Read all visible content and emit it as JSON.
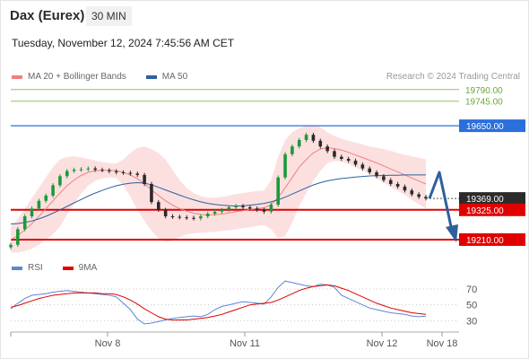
{
  "header": {
    "title": "Dax (Eurex)",
    "timeframe": "30 MIN",
    "datetime": "Tuesday, November 12, 2024 7:45:56 AM CET"
  },
  "legend": {
    "items": [
      {
        "label": "MA 20 + Bollinger Bands",
        "color": "#f08080"
      },
      {
        "label": "MA 50",
        "color": "#2e5f9e"
      }
    ],
    "credit": "Research © 2024 Trading Central"
  },
  "rsi_legend": {
    "items": [
      {
        "label": "RSI",
        "color": "#5b86d6"
      },
      {
        "label": "9MA",
        "color": "#e00000"
      }
    ]
  },
  "chart_data": [
    {
      "type": "line",
      "title": "Dax (Eurex)",
      "x_ticks": [
        "Nov 8",
        "Nov 11",
        "Nov 12",
        "Nov 18"
      ],
      "y_range": [
        19130,
        19810
      ],
      "levels": [
        {
          "value": 19790.0,
          "label": "19790.00",
          "color": "#8dc65c",
          "style": "thin"
        },
        {
          "value": 19745.0,
          "label": "19745.00",
          "color": "#8dc65c",
          "style": "thin"
        },
        {
          "value": 19650.0,
          "label": "19650.00",
          "color": "#2a6fdb",
          "style": "box"
        },
        {
          "value": 19369.0,
          "label": "19369.00",
          "color": "#2b2b2b",
          "style": "box"
        },
        {
          "value": 19325.0,
          "label": "19325.00",
          "color": "#e00000",
          "style": "box"
        },
        {
          "value": 19210.0,
          "label": "19210.00",
          "color": "#e00000",
          "style": "box"
        }
      ],
      "price": [
        19190,
        19250,
        19300,
        19330,
        19360,
        19380,
        19420,
        19455,
        19475,
        19480,
        19482,
        19485,
        19480,
        19478,
        19474,
        19470,
        19468,
        19465,
        19460,
        19425,
        19355,
        19325,
        19300,
        19298,
        19296,
        19294,
        19292,
        19300,
        19310,
        19318,
        19325,
        19335,
        19340,
        19335,
        19330,
        19325,
        19318,
        19345,
        19450,
        19540,
        19570,
        19595,
        19615,
        19592,
        19570,
        19552,
        19530,
        19522,
        19515,
        19500,
        19485,
        19470,
        19455,
        19440,
        19425,
        19415,
        19400,
        19385,
        19375,
        19369
      ],
      "ma20": [
        19210,
        19225,
        19248,
        19272,
        19300,
        19330,
        19360,
        19390,
        19418,
        19440,
        19458,
        19470,
        19476,
        19478,
        19478,
        19476,
        19470,
        19460,
        19445,
        19426,
        19402,
        19380,
        19360,
        19343,
        19330,
        19320,
        19312,
        19307,
        19305,
        19306,
        19309,
        19313,
        19318,
        19322,
        19326,
        19330,
        19333,
        19345,
        19372,
        19410,
        19450,
        19490,
        19520,
        19545,
        19560,
        19565,
        19562,
        19556,
        19547,
        19537,
        19527,
        19517,
        19506,
        19495,
        19483,
        19472,
        19460,
        19448,
        19436,
        19425
      ],
      "bb_upper": [
        19260,
        19290,
        19330,
        19370,
        19410,
        19450,
        19490,
        19520,
        19530,
        19532,
        19528,
        19522,
        19515,
        19510,
        19506,
        19504,
        19520,
        19545,
        19565,
        19570,
        19560,
        19545,
        19520,
        19480,
        19440,
        19410,
        19390,
        19378,
        19372,
        19372,
        19375,
        19380,
        19386,
        19390,
        19394,
        19398,
        19400,
        19440,
        19530,
        19595,
        19625,
        19640,
        19650,
        19652,
        19645,
        19625,
        19610,
        19600,
        19592,
        19585,
        19578,
        19570,
        19565,
        19560,
        19553,
        19545,
        19538,
        19532,
        19526,
        19520
      ],
      "bb_lower": [
        19160,
        19160,
        19166,
        19174,
        19190,
        19210,
        19230,
        19260,
        19306,
        19348,
        19388,
        19418,
        19437,
        19446,
        19450,
        19448,
        19420,
        19375,
        19325,
        19282,
        19244,
        19215,
        19200,
        19206,
        19220,
        19230,
        19234,
        19236,
        19238,
        19240,
        19243,
        19246,
        19250,
        19254,
        19258,
        19262,
        19266,
        19250,
        19214,
        19225,
        19275,
        19340,
        19390,
        19438,
        19475,
        19505,
        19514,
        19512,
        19502,
        19489,
        19476,
        19464,
        19447,
        19430,
        19413,
        19399,
        19382,
        19364,
        19346,
        19330
      ],
      "ma50": [
        19270,
        19272,
        19276,
        19282,
        19290,
        19300,
        19312,
        19325,
        19338,
        19352,
        19365,
        19378,
        19390,
        19400,
        19410,
        19418,
        19424,
        19428,
        19430,
        19428,
        19422,
        19412,
        19402,
        19392,
        19382,
        19372,
        19364,
        19356,
        19350,
        19346,
        19343,
        19341,
        19340,
        19341,
        19343,
        19346,
        19350,
        19356,
        19364,
        19374,
        19386,
        19398,
        19410,
        19421,
        19430,
        19437,
        19442,
        19446,
        19449,
        19452,
        19454,
        19456,
        19457,
        19458,
        19459,
        19459,
        19460,
        19460,
        19460,
        19460
      ],
      "projection": [
        19369,
        19470,
        19210
      ]
    },
    {
      "type": "line",
      "title": "RSI",
      "y_ticks": [
        70,
        50,
        30
      ],
      "y_range": [
        18,
        88
      ],
      "rsi": [
        45,
        52,
        58,
        62,
        63,
        64,
        66,
        67,
        68,
        67,
        66,
        65,
        64,
        63,
        62,
        60,
        52,
        44,
        32,
        26,
        27,
        29,
        31,
        33,
        34,
        35,
        36,
        35,
        38,
        44,
        48,
        50,
        52,
        54,
        53,
        52,
        51,
        60,
        72,
        80,
        78,
        76,
        74,
        73,
        76,
        75,
        72,
        62,
        58,
        54,
        50,
        46,
        44,
        42,
        40,
        39,
        38,
        36,
        35,
        36
      ],
      "ma9": [
        47,
        49,
        52,
        55,
        58,
        60,
        62,
        63,
        64,
        65,
        65,
        65,
        65,
        64,
        64,
        63,
        60,
        56,
        51,
        45,
        40,
        35,
        32,
        31,
        31,
        31,
        32,
        33,
        34,
        36,
        38,
        41,
        44,
        47,
        50,
        51,
        52,
        53,
        56,
        60,
        64,
        68,
        71,
        73,
        74,
        75,
        74,
        71,
        68,
        64,
        60,
        56,
        52,
        49,
        46,
        44,
        42,
        40,
        39,
        38
      ]
    }
  ]
}
